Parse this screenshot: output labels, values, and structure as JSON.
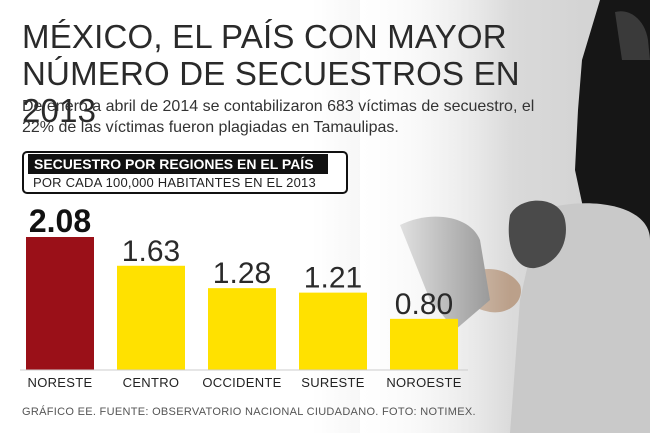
{
  "title": "MÉXICO, EL PAÍS CON MAYOR NÚMERO DE SECUESTROS EN 2013",
  "subtitle": "De enero a abril de 2014 se contabilizaron 683 víctimas de secuestro, el 22% de las víctimas fueron plagiadas en Tamaulipas.",
  "credit": "GRÁFICO EE. FUENTE: OBSERVATORIO NACIONAL CIUDADANO. FOTO: NOTIMEX.",
  "colors": {
    "highlight": "#9a1018",
    "bar": "#ffe100",
    "text": "#2a2a2a"
  },
  "chart_data": {
    "type": "bar",
    "title": "SECUESTRO POR REGIONES EN EL PAÍS",
    "subtitle": "POR CADA 100,000 HABITANTES EN EL 2013",
    "categories": [
      "NORESTE",
      "CENTRO",
      "OCCIDENTE",
      "SURESTE",
      "NOROESTE"
    ],
    "values": [
      2.08,
      1.63,
      1.28,
      1.21,
      0.8
    ],
    "value_labels": [
      "2.08",
      "1.63",
      "1.28",
      "1.21",
      "0.80"
    ],
    "highlight_index": 0,
    "xlabel": "",
    "ylabel": "",
    "ylim": [
      0,
      2.08
    ],
    "grid": false
  }
}
